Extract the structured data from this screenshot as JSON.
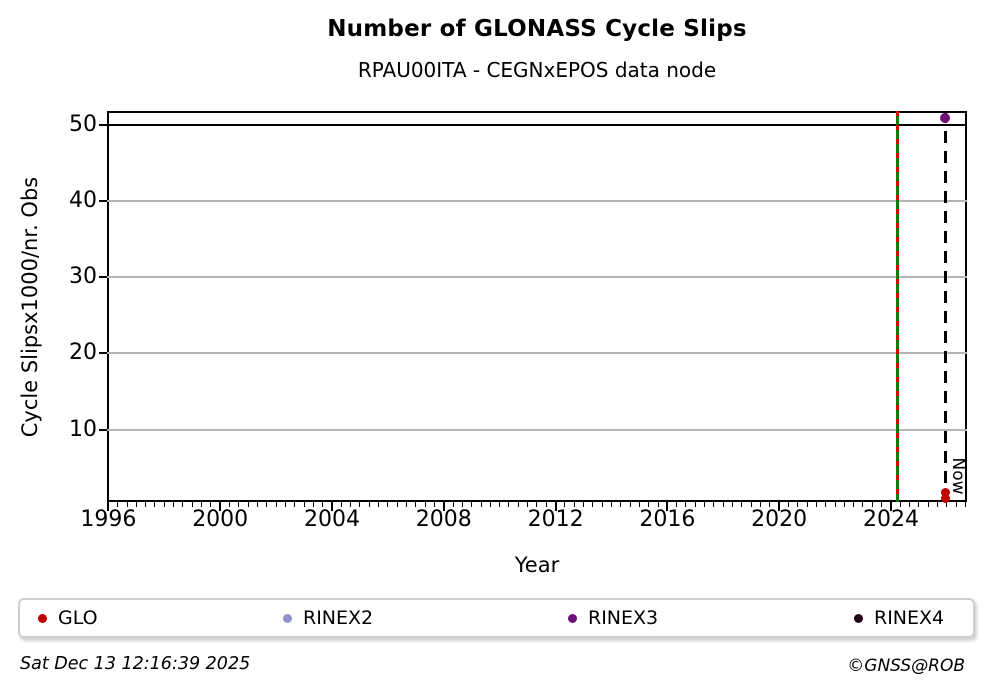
{
  "chart_data": {
    "type": "scatter",
    "title": "Number of GLONASS Cycle Slips",
    "subtitle": "RPAU00ITA - CEGNxEPOS data node",
    "xlabel": "Year",
    "ylabel": "Cycle Slipsx1000/nr. Obs",
    "xlim": [
      1995.95,
      2026.72
    ],
    "ylim": [
      0.5,
      51.8
    ],
    "xticks": [
      1996,
      2000,
      2004,
      2008,
      2012,
      2016,
      2020,
      2024
    ],
    "minor_xtick_step_years": 0.3333,
    "yticks": [
      10,
      20,
      30,
      40,
      50
    ],
    "grid": "horizontal",
    "grid_color": "#b5b5b5",
    "series": [
      {
        "name": "GLO",
        "color": "#c00000",
        "points": [
          {
            "x": 2025.95,
            "y": 1.7
          },
          {
            "x": 2025.95,
            "y": 0.9
          }
        ]
      },
      {
        "name": "RINEX2",
        "color": "#9291cf",
        "points": []
      },
      {
        "name": "RINEX3",
        "color": "#700f78",
        "points": [
          {
            "x": 2025.95,
            "y": 50.9
          }
        ]
      },
      {
        "name": "RINEX4",
        "color": "#230519",
        "points": []
      }
    ],
    "annotations": {
      "reference_line": {
        "y": 50,
        "color": "#000000"
      },
      "event_line": {
        "x": 2024.25,
        "line_color": "#0b7a0b",
        "dash_color": "#e00000"
      },
      "now_line": {
        "x": 2025.95,
        "label": "Now",
        "color": "#000000"
      }
    }
  },
  "legend": {
    "items": [
      {
        "label": "GLO",
        "color": "#c00000"
      },
      {
        "label": "RINEX2",
        "color": "#9291cf"
      },
      {
        "label": "RINEX3",
        "color": "#700f78"
      },
      {
        "label": "RINEX4",
        "color": "#230519"
      }
    ]
  },
  "footer": {
    "timestamp": "Sat Dec 13 12:16:39 2025",
    "copyright": "©GNSS@ROB"
  }
}
